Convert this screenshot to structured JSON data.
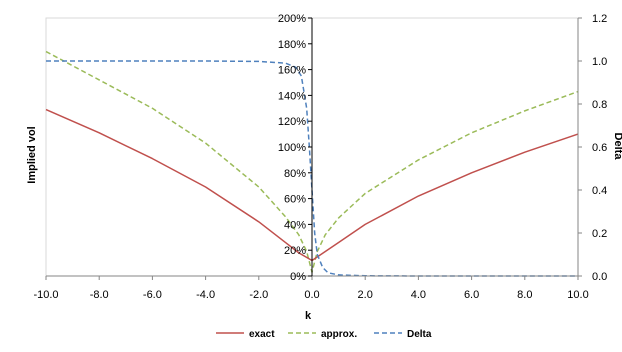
{
  "chart_data": {
    "type": "line",
    "title": "",
    "xlabel": "k",
    "ylabel": "Implied vol",
    "y2label": "Delta",
    "xlim": [
      -10,
      10
    ],
    "ylim": [
      0,
      2
    ],
    "y2lim": [
      0,
      1.2
    ],
    "x_ticks": [
      -10,
      -8,
      -6,
      -4,
      -2,
      0,
      2,
      4,
      6,
      8,
      10
    ],
    "x_tick_labels": [
      "-10.0",
      "-8.0",
      "-6.0",
      "-4.0",
      "-2.0",
      "0.0",
      "2.0",
      "4.0",
      "6.0",
      "8.0",
      "10.0"
    ],
    "y_ticks": [
      0,
      0.2,
      0.4,
      0.6,
      0.8,
      1.0,
      1.2,
      1.4,
      1.6,
      1.8,
      2.0
    ],
    "y_tick_labels": [
      "0%",
      "20%",
      "40%",
      "60%",
      "80%",
      "100%",
      "120%",
      "140%",
      "160%",
      "180%",
      "200%"
    ],
    "y2_ticks": [
      0,
      0.2,
      0.4,
      0.6,
      0.8,
      1.0,
      1.2
    ],
    "y2_tick_labels": [
      "0.0",
      "0.2",
      "0.4",
      "0.6",
      "0.8",
      "1.0",
      "1.2"
    ],
    "grid": false,
    "legend_position": "bottom",
    "series": [
      {
        "name": "exact",
        "axis": "left",
        "color": "#c0504d",
        "dash": "solid",
        "x": [
          -10,
          -8,
          -6,
          -4,
          -2,
          -1,
          -0.5,
          0,
          0.5,
          1,
          2,
          4,
          6,
          8,
          10
        ],
        "values": [
          1.29,
          1.11,
          0.91,
          0.69,
          0.42,
          0.26,
          0.18,
          0.12,
          0.19,
          0.26,
          0.4,
          0.62,
          0.8,
          0.96,
          1.1
        ]
      },
      {
        "name": "approx.",
        "axis": "left",
        "color": "#9bbb59",
        "dash": "dashed",
        "x": [
          -10,
          -8,
          -6,
          -4,
          -2,
          -1,
          -0.5,
          -0.2,
          0,
          0.2,
          0.5,
          1,
          2,
          4,
          6,
          8,
          10
        ],
        "values": [
          1.74,
          1.52,
          1.3,
          1.03,
          0.69,
          0.46,
          0.32,
          0.19,
          0.03,
          0.19,
          0.32,
          0.45,
          0.64,
          0.9,
          1.11,
          1.28,
          1.43
        ]
      },
      {
        "name": "Delta",
        "axis": "right",
        "color": "#4f81bd",
        "dash": "dashed",
        "x": [
          -10,
          -4,
          -2,
          -1,
          -0.6,
          -0.4,
          -0.2,
          -0.1,
          0,
          0.1,
          0.2,
          0.4,
          0.6,
          1,
          2,
          4,
          10
        ],
        "values": [
          1.0,
          1.0,
          0.998,
          0.99,
          0.97,
          0.93,
          0.78,
          0.6,
          0.4,
          0.2,
          0.1,
          0.04,
          0.015,
          0.005,
          0.001,
          0.0,
          0.0
        ]
      }
    ]
  }
}
